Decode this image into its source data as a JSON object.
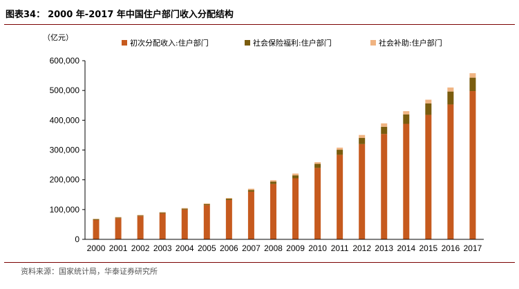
{
  "header": {
    "title_label": "图表34：",
    "title_text": "2000 年-2017 年中国住户部门收入分配结构"
  },
  "footer": {
    "source": "资料来源：国家统计局，华泰证券研究所"
  },
  "chart_data": {
    "type": "bar",
    "stacked": true,
    "unit": "（亿元）",
    "categories": [
      "2000",
      "2001",
      "2002",
      "2003",
      "2004",
      "2005",
      "2006",
      "2007",
      "2008",
      "2009",
      "2010",
      "2011",
      "2012",
      "2013",
      "2014",
      "2015",
      "2016",
      "2017"
    ],
    "series": [
      {
        "name": "初次分配收入:住户部门",
        "color": "#c65a1e",
        "values": [
          65000,
          71000,
          78000,
          87000,
          100000,
          115000,
          132000,
          160000,
          186000,
          205000,
          240000,
          284000,
          320000,
          354000,
          388000,
          418000,
          453000,
          498000
        ]
      },
      {
        "name": "社会保险福利:住户部门",
        "color": "#7a5c0e",
        "values": [
          3000,
          2500,
          2500,
          3000,
          3000,
          3500,
          4500,
          6000,
          8000,
          10000,
          13500,
          17000,
          20500,
          24000,
          31500,
          38500,
          43500,
          45000
        ]
      },
      {
        "name": "社会补助:住户部门",
        "color": "#f0b482",
        "values": [
          1000,
          1500,
          1500,
          1500,
          2000,
          2500,
          2500,
          4000,
          4500,
          6000,
          5500,
          7000,
          10000,
          11500,
          11000,
          12500,
          13500,
          15000
        ]
      }
    ],
    "ylim": [
      0,
      600000
    ],
    "yticks": [
      0,
      100000,
      200000,
      300000,
      400000,
      500000,
      600000
    ],
    "ytick_labels": [
      "0",
      "100,000",
      "200,000",
      "300,000",
      "400,000",
      "500,000",
      "600,000"
    ],
    "legend_position": "top",
    "grid": false,
    "xlabel": "",
    "ylabel": ""
  }
}
